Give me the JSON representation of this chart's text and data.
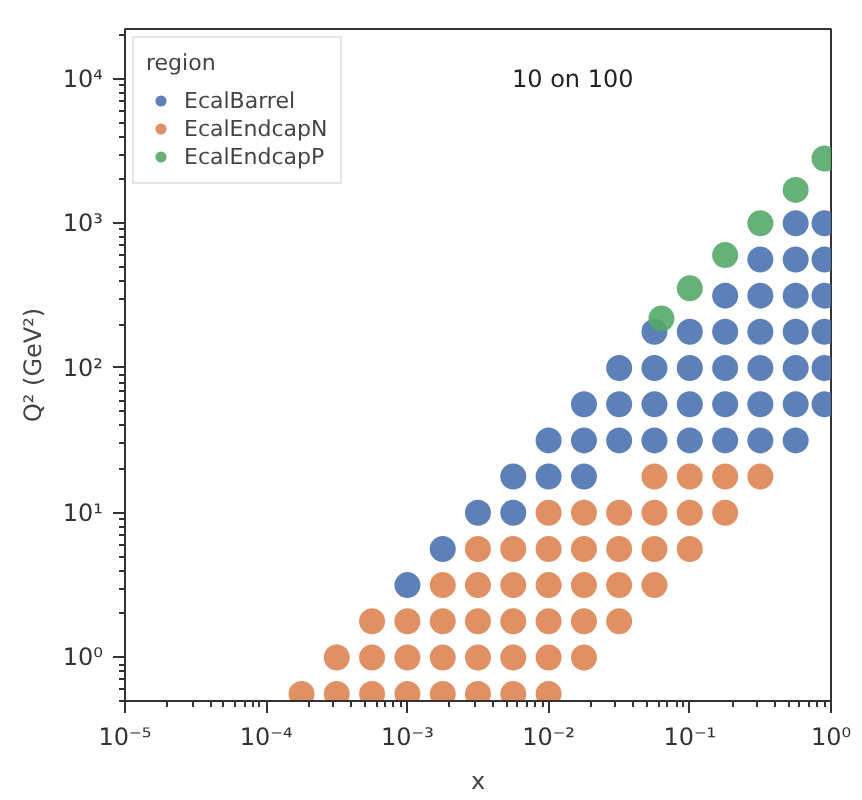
{
  "chart_data": {
    "type": "scatter",
    "title": "10 on 100",
    "xlabel": "x",
    "ylabel": "Q² (GeV²)",
    "legend_title": "region",
    "legend": "top left",
    "grid": false,
    "marker": "circle",
    "log": "xy",
    "xlim": [
      1e-05,
      1
    ],
    "ylim": [
      0.5,
      22000
    ],
    "xticks": [
      {
        "value": 1e-05,
        "label": "10⁻⁵"
      },
      {
        "value": 0.0001,
        "label": "10⁻⁴"
      },
      {
        "value": 0.001,
        "label": "10⁻³"
      },
      {
        "value": 0.01,
        "label": "10⁻²"
      },
      {
        "value": 0.1,
        "label": "10⁻¹"
      },
      {
        "value": 1,
        "label": "10⁰"
      }
    ],
    "yticks": [
      {
        "value": 1,
        "label": "10⁰"
      },
      {
        "value": 10,
        "label": "10¹"
      },
      {
        "value": 100,
        "label": "10²"
      },
      {
        "value": 1000,
        "label": "10³"
      },
      {
        "value": 10000,
        "label": "10⁴"
      }
    ],
    "series": [
      {
        "name": "EcalBarrel",
        "color": "#4c72b0",
        "x": [
          0.001,
          0.00178,
          0.00316,
          0.00562,
          0.00562,
          0.01,
          0.01,
          0.0178,
          0.0178,
          0.0178,
          0.0316,
          0.0316,
          0.0316,
          0.0562,
          0.0562,
          0.0562,
          0.0562,
          0.1,
          0.1,
          0.1,
          0.1,
          0.178,
          0.178,
          0.178,
          0.178,
          0.178,
          0.316,
          0.316,
          0.316,
          0.316,
          0.316,
          0.316,
          0.562,
          0.562,
          0.562,
          0.562,
          0.562,
          0.562,
          0.562,
          0.9,
          0.9,
          0.9,
          0.9,
          0.9,
          0.9
        ],
        "values": [
          3.16,
          5.62,
          10,
          10,
          17.8,
          17.8,
          31.6,
          17.8,
          31.6,
          56.2,
          31.6,
          56.2,
          100,
          31.6,
          56.2,
          100,
          178,
          31.6,
          56.2,
          100,
          178,
          31.6,
          56.2,
          100,
          178,
          316,
          31.6,
          56.2,
          100,
          178,
          316,
          562,
          31.6,
          56.2,
          100,
          178,
          316,
          562,
          1000,
          56.2,
          100,
          178,
          316,
          562,
          1000
        ]
      },
      {
        "name": "EcalEndcapN",
        "color": "#dd8452",
        "x": [
          0.000178,
          0.000316,
          0.000316,
          0.000562,
          0.000562,
          0.000562,
          0.001,
          0.001,
          0.001,
          0.00178,
          0.00178,
          0.00178,
          0.00178,
          0.00316,
          0.00316,
          0.00316,
          0.00316,
          0.00316,
          0.00562,
          0.00562,
          0.00562,
          0.00562,
          0.00562,
          0.01,
          0.01,
          0.01,
          0.01,
          0.01,
          0.01,
          0.0178,
          0.0178,
          0.0178,
          0.0178,
          0.0178,
          0.0316,
          0.0316,
          0.0316,
          0.0316,
          0.0562,
          0.0562,
          0.0562,
          0.0562,
          0.1,
          0.1,
          0.1,
          0.178,
          0.178,
          0.316
        ],
        "values": [
          0.56,
          0.56,
          1,
          0.56,
          1,
          1.78,
          0.56,
          1,
          1.78,
          0.56,
          1,
          1.78,
          3.16,
          0.56,
          1,
          1.78,
          3.16,
          5.62,
          0.56,
          1,
          1.78,
          3.16,
          5.62,
          0.56,
          1,
          1.78,
          3.16,
          5.62,
          10,
          1,
          1.78,
          3.16,
          5.62,
          10,
          1.78,
          3.16,
          5.62,
          10,
          3.16,
          5.62,
          10,
          17.8,
          5.62,
          10,
          17.8,
          10,
          17.8,
          17.8
        ]
      },
      {
        "name": "EcalEndcapP",
        "color": "#55a868",
        "x": [
          0.063,
          0.1,
          0.178,
          0.316,
          0.562,
          0.9
        ],
        "values": [
          220,
          355,
          603,
          1000,
          1700,
          2800
        ]
      }
    ]
  }
}
